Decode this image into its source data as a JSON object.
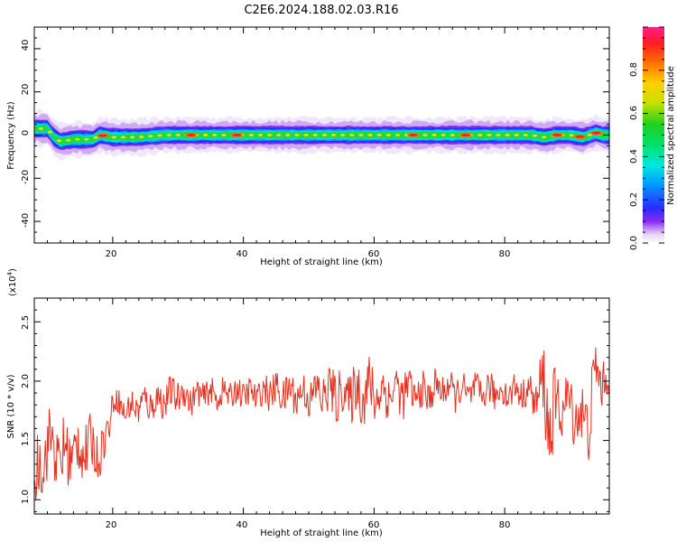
{
  "title": "C2E6.2024.188.02.03.R16",
  "chart_data": [
    {
      "type": "heatmap",
      "xlabel": "Height of straight line (km)",
      "ylabel": "Frequency (Hz)",
      "xlim": [
        8,
        96
      ],
      "ylim": [
        -50,
        50
      ],
      "xticks": [
        "20",
        "40",
        "60",
        "80"
      ],
      "yticks": [
        "40",
        "20",
        "0",
        "-20",
        "-40"
      ],
      "colorbar": {
        "label": "Normalized spectral amplitude",
        "ticks": [
          "0.0",
          "0.2",
          "0.4",
          "0.6",
          "0.8"
        ],
        "range": [
          0,
          1
        ]
      },
      "ridge": {
        "x": [
          8,
          10,
          11,
          12,
          14,
          16,
          17,
          18,
          20,
          24,
          28,
          32,
          36,
          40,
          44,
          48,
          52,
          56,
          60,
          64,
          68,
          72,
          76,
          80,
          84,
          86,
          88,
          90,
          92,
          94,
          95
        ],
        "freq": [
          3,
          3,
          -1,
          -3,
          -2,
          -2,
          -2,
          0,
          -1,
          -1,
          0,
          0,
          0,
          0,
          0,
          0,
          0,
          0,
          0,
          0,
          0,
          0,
          0,
          0,
          0,
          -1,
          0,
          0,
          -1,
          1,
          0
        ]
      },
      "hotspots_x": [
        18.5,
        32,
        39,
        66,
        74,
        88,
        91.5,
        94
      ]
    },
    {
      "type": "line",
      "xlabel": "Height of straight line (km)",
      "ylabel": "SNR (10 * v/v)",
      "multiplier_label": "(x10",
      "multiplier_exp": "4",
      "multiplier_close": ")",
      "xlim": [
        8,
        96
      ],
      "ylim": [
        0.88,
        2.7
      ],
      "xticks": [
        "20",
        "40",
        "60",
        "80"
      ],
      "yticks": [
        "1.0",
        "1.5",
        "2.0",
        "2.5"
      ],
      "series": [
        {
          "color": "#e8301f",
          "anchors_x": [
            8,
            10,
            12,
            14,
            16,
            18,
            19,
            20,
            22,
            24,
            26,
            28,
            30,
            32,
            34,
            36,
            38,
            40,
            42,
            44,
            46,
            48,
            50,
            52,
            54,
            56,
            58,
            60,
            62,
            64,
            66,
            68,
            70,
            72,
            74,
            76,
            78,
            80,
            82,
            84,
            85,
            86,
            87,
            88,
            90,
            92,
            93,
            94,
            95
          ],
          "anchors_y": [
            1.1,
            1.5,
            1.35,
            1.4,
            1.45,
            1.4,
            1.5,
            1.85,
            1.75,
            1.8,
            1.82,
            1.85,
            1.9,
            1.85,
            1.9,
            1.88,
            1.9,
            1.9,
            1.88,
            1.92,
            1.9,
            1.9,
            1.88,
            1.9,
            1.9,
            1.88,
            1.92,
            1.9,
            1.9,
            1.92,
            1.9,
            1.88,
            1.95,
            1.92,
            1.9,
            1.9,
            1.92,
            1.9,
            1.92,
            1.9,
            1.85,
            1.95,
            1.6,
            1.8,
            1.8,
            1.65,
            1.7,
            2.1,
            2.0
          ],
          "noise_amp": [
            0.32,
            0.28,
            0.3,
            0.28,
            0.25,
            0.18,
            0.2,
            0.1,
            0.12,
            0.14,
            0.14,
            0.14,
            0.14,
            0.12,
            0.12,
            0.12,
            0.12,
            0.12,
            0.13,
            0.14,
            0.16,
            0.16,
            0.16,
            0.2,
            0.22,
            0.22,
            0.25,
            0.25,
            0.2,
            0.2,
            0.16,
            0.16,
            0.14,
            0.14,
            0.14,
            0.14,
            0.14,
            0.13,
            0.13,
            0.14,
            0.2,
            0.35,
            0.4,
            0.25,
            0.22,
            0.28,
            0.3,
            0.25,
            0.2
          ]
        }
      ]
    }
  ]
}
